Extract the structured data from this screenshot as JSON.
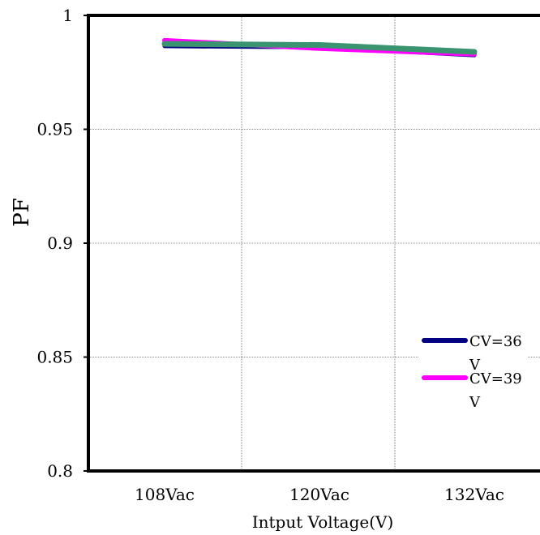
{
  "chart_data": {
    "type": "line",
    "categories": [
      "108Vac",
      "120Vac",
      "132Vac"
    ],
    "series": [
      {
        "name": "CV=36 V",
        "values": [
          0.9865,
          0.986,
          0.9825
        ],
        "color": "#000080"
      },
      {
        "name": "CV=39 V",
        "values": [
          0.989,
          0.9855,
          0.983
        ],
        "color": "#ff00ff"
      },
      {
        "name": "",
        "values": [
          0.9875,
          0.987,
          0.984
        ],
        "color": "#3a9470"
      }
    ],
    "title": "",
    "xlabel": "Intput Voltage(V)",
    "ylabel": "PF",
    "ylim": [
      0.8,
      1
    ],
    "yticks": [
      0.8,
      0.85,
      0.9,
      0.95,
      1
    ],
    "ytick_labels": [
      "0.8",
      "0.85",
      "0.9",
      "0.95",
      "1"
    ],
    "grid": true,
    "legend": {
      "position": "right",
      "entries": [
        {
          "line1": "CV=36",
          "line2": "V",
          "color": "#000080"
        },
        {
          "line1": "CV=39",
          "line2": "V",
          "color": "#ff00ff"
        }
      ]
    }
  }
}
